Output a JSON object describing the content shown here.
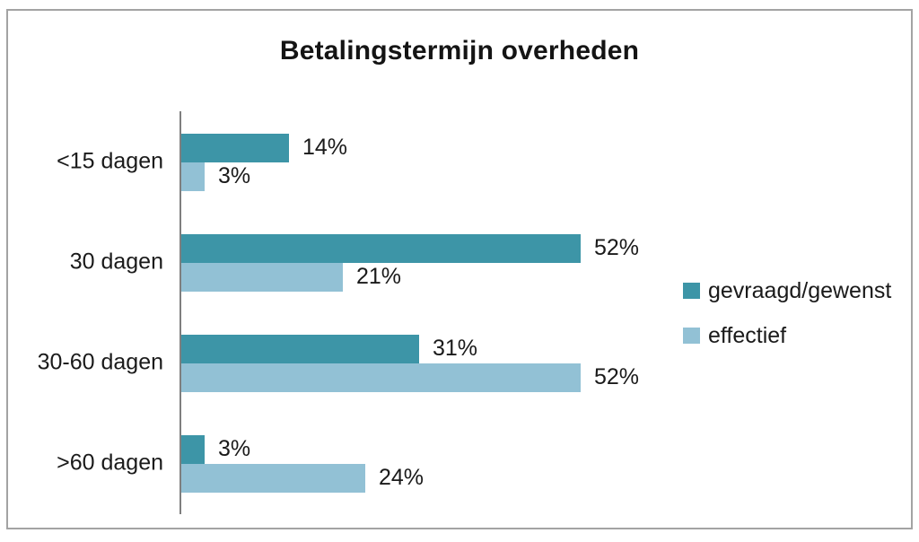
{
  "chart_data": {
    "type": "bar",
    "orientation": "horizontal",
    "title": "Betalingstermijn overheden",
    "categories": [
      "<15 dagen",
      "30 dagen",
      "30-60 dagen",
      ">60 dagen"
    ],
    "series": [
      {
        "name": "gevraagd/gewenst",
        "color": "#3d95a7",
        "values": [
          14,
          52,
          31,
          3
        ]
      },
      {
        "name": "effectief",
        "color": "#92c1d5",
        "values": [
          3,
          21,
          52,
          24
        ]
      }
    ],
    "value_suffix": "%",
    "value_labels": [
      [
        "14%",
        "52%",
        "31%",
        "3%"
      ],
      [
        "3%",
        "21%",
        "52%",
        "24%"
      ]
    ],
    "xlim": [
      0,
      60
    ],
    "grid": false,
    "legend_position": "right",
    "axis_color": "#7f7f7f",
    "frame_border_color": "#a3a3a3",
    "text_color": "#1a1a1a"
  }
}
